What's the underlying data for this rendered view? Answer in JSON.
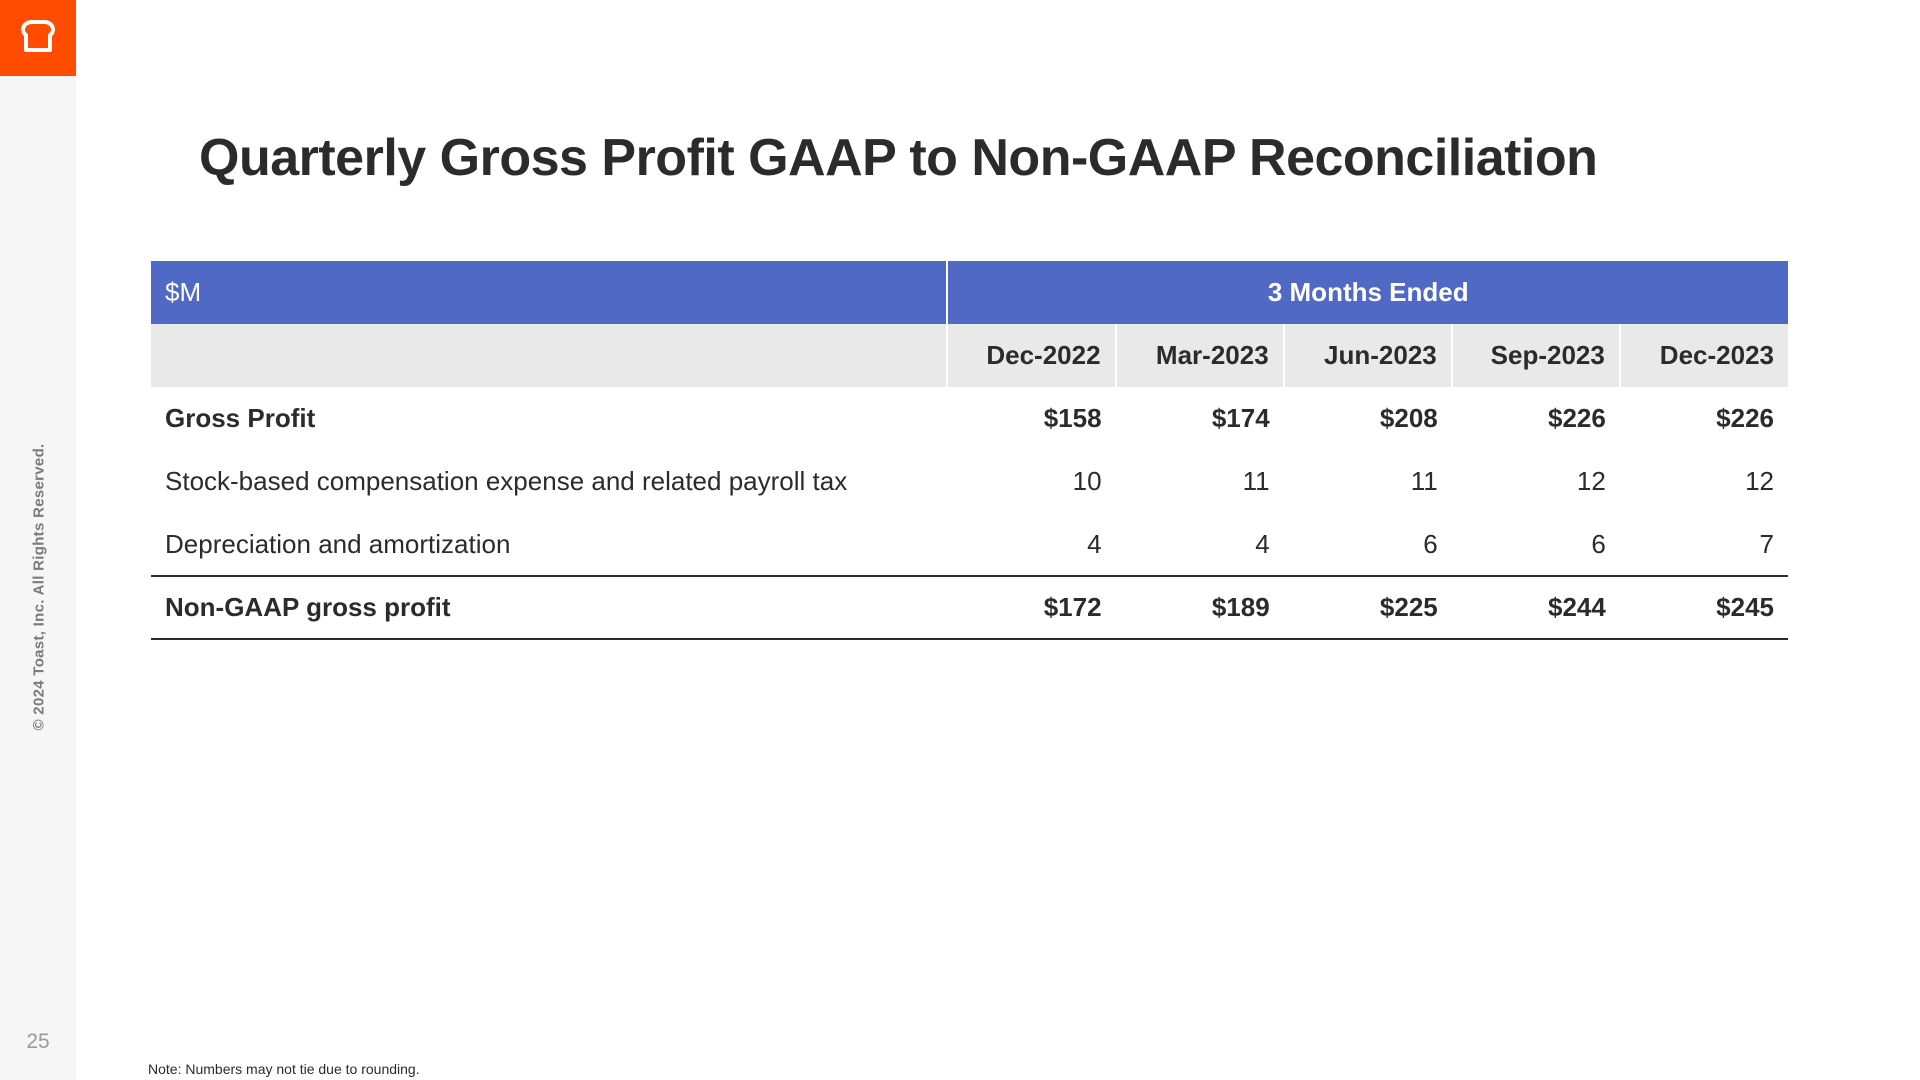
{
  "sidebar": {
    "logo_icon": "toast-logo-icon",
    "brand_color": "#ff4c00",
    "copyright": "© 2024 Toast, Inc.  All Rights Reserved.",
    "page_number": "25"
  },
  "title": "Quarterly Gross Profit GAAP to Non-GAAP Reconciliation",
  "table": {
    "header_color": "#5069c4",
    "unit_label": "$M",
    "period_label": "3 Months Ended",
    "columns": [
      "Dec-2022",
      "Mar-2023",
      "Jun-2023",
      "Sep-2023",
      "Dec-2023"
    ],
    "rows": [
      {
        "label": "Gross Profit",
        "values": [
          "$158",
          "$174",
          "$208",
          "$226",
          "$226"
        ]
      },
      {
        "label": "Stock-based compensation expense and related payroll tax",
        "values": [
          "10",
          "11",
          "11",
          "12",
          "12"
        ]
      },
      {
        "label": "Depreciation and amortization",
        "values": [
          "4",
          "4",
          "6",
          "6",
          "7"
        ]
      },
      {
        "label": "Non-GAAP gross profit",
        "values": [
          "$172",
          "$189",
          "$225",
          "$244",
          "$245"
        ]
      }
    ]
  },
  "footnote": "Note: Numbers may not tie due to rounding."
}
